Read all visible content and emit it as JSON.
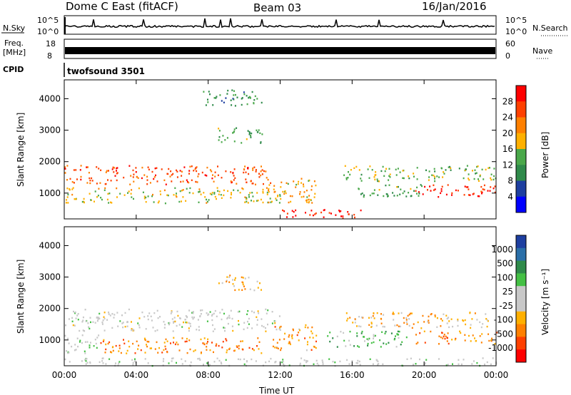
{
  "header": {
    "station": "Dome C East (fitACF)",
    "beam": "Beam 03",
    "date": "16/Jan/2016"
  },
  "left_labels": {
    "n_sky": "N.Sky",
    "freq_top": "Freq.",
    "freq_unit": "[MHz]",
    "cpid": "CPID"
  },
  "right_labels": {
    "n_search": "N.Search",
    "nave": "Nave"
  },
  "noise_panel": {
    "left_ticks": [
      "10^5",
      "10^0"
    ],
    "right_ticks": [
      "10^5",
      "10^0"
    ]
  },
  "freq_panel": {
    "left_ticks": [
      "18",
      "8"
    ],
    "right_ticks": [
      "60",
      "0"
    ]
  },
  "cpid_text": "twofsound 3501",
  "x_ticks": [
    "00:00",
    "04:00",
    "08:00",
    "12:00",
    "16:00",
    "20:00",
    "00:00"
  ],
  "x_title": "Time UT",
  "colors": {
    "power_scale": [
      "#0000ff",
      "#1e3fa0",
      "#2f8a4a",
      "#4aa84a",
      "#ffb000",
      "#ff8000",
      "#ff4000",
      "#ff0000"
    ],
    "velocity_scale": [
      "#ff0000",
      "#ff4000",
      "#ff8000",
      "#ffb000",
      "#c8c8c8",
      "#c8c8c8",
      "#44c044",
      "#2f8a4a",
      "#2a6fa8",
      "#1e3fa0"
    ]
  },
  "chart_data": [
    {
      "type": "heatmap",
      "title": "",
      "ylabel": "Slant Range [km]",
      "xlabel": "",
      "x_range_hours": [
        0,
        24
      ],
      "ylim": [
        180,
        4600
      ],
      "y_ticks": [
        "1000",
        "2000",
        "3000",
        "4000"
      ],
      "colorbar": {
        "label": "Power [dB]",
        "ticks": [
          "28",
          "24",
          "20",
          "16",
          "12",
          "8",
          "4"
        ],
        "range": [
          0,
          30
        ]
      },
      "regions": [
        {
          "t": [
            0.0,
            11.5
          ],
          "range_km": [
            1300,
            1900
          ],
          "value": 24
        },
        {
          "t": [
            0.0,
            12.0
          ],
          "range_km": [
            700,
            1200
          ],
          "value": 16
        },
        {
          "t": [
            8.5,
            11.0
          ],
          "range_km": [
            2600,
            3100
          ],
          "value": 12
        },
        {
          "t": [
            7.5,
            11.0
          ],
          "range_km": [
            3800,
            4300
          ],
          "value": 10
        },
        {
          "t": [
            15.5,
            24.0
          ],
          "range_km": [
            1400,
            1900
          ],
          "value": 14
        },
        {
          "t": [
            19.5,
            24.0
          ],
          "range_km": [
            900,
            1300
          ],
          "value": 26
        },
        {
          "t": [
            11.0,
            14.0
          ],
          "range_km": [
            700,
            1500
          ],
          "value": 18
        },
        {
          "t": [
            12.0,
            16.5
          ],
          "range_km": [
            200,
            500
          ],
          "value": 28
        },
        {
          "t": [
            16.0,
            20.0
          ],
          "range_km": [
            900,
            1300
          ],
          "value": 12
        }
      ]
    },
    {
      "type": "heatmap",
      "title": "",
      "ylabel": "Slant Range [km]",
      "xlabel": "Time UT",
      "x_range_hours": [
        0,
        24
      ],
      "ylim": [
        180,
        4600
      ],
      "y_ticks": [
        "1000",
        "2000",
        "3000",
        "4000"
      ],
      "colorbar": {
        "label": "Velocity [m s⁻¹]",
        "ticks": [
          "1000",
          "500",
          "100",
          "25",
          "-25",
          "-100",
          "-500",
          "-1000"
        ],
        "range": [
          -1000,
          1000
        ]
      },
      "regions": [
        {
          "t": [
            0.0,
            12.0
          ],
          "range_km": [
            1300,
            2000
          ],
          "value": 0
        },
        {
          "t": [
            0.0,
            2.0
          ],
          "range_km": [
            600,
            1200
          ],
          "value": 100
        },
        {
          "t": [
            2.0,
            11.0
          ],
          "range_km": [
            600,
            1100
          ],
          "value": -500
        },
        {
          "t": [
            8.5,
            11.0
          ],
          "range_km": [
            2600,
            3100
          ],
          "value": -300
        },
        {
          "t": [
            11.5,
            14.0
          ],
          "range_km": [
            700,
            1500
          ],
          "value": -400
        },
        {
          "t": [
            14.5,
            19.0
          ],
          "range_km": [
            800,
            1300
          ],
          "value": 300
        },
        {
          "t": [
            15.5,
            24.0
          ],
          "range_km": [
            1400,
            1900
          ],
          "value": -300
        },
        {
          "t": [
            19.5,
            24.0
          ],
          "range_km": [
            900,
            1300
          ],
          "value": -500
        },
        {
          "t": [
            0.0,
            24.0
          ],
          "range_km": [
            200,
            450
          ],
          "value": 50
        }
      ]
    }
  ]
}
